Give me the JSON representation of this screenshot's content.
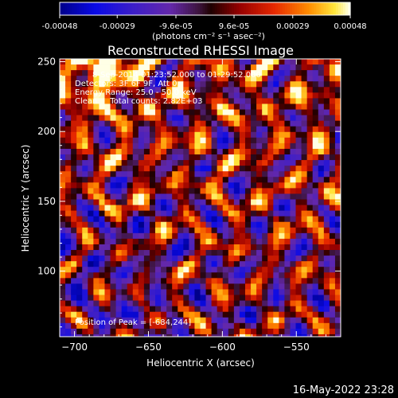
{
  "chart_data": {
    "type": "heatmap",
    "title": "Reconstructed RHESSI Image",
    "xlabel": "Heliocentric X (arcsec)",
    "ylabel": "Heliocentric Y (arcsec)",
    "xlim": [
      -710,
      -520
    ],
    "ylim": [
      53,
      252
    ],
    "x_ticks": [
      -700,
      -650,
      -600,
      -550
    ],
    "y_ticks": [
      100,
      150,
      200,
      250
    ],
    "colorbar": {
      "ticks": [
        -0.00048,
        -0.00029,
        -9.6e-05,
        9.6e-05,
        0.00029,
        0.00048
      ],
      "tick_labels": [
        "-0.00048",
        "-0.00029",
        "-9.6e-05",
        "9.6e-05",
        "0.00029",
        "0.00048"
      ],
      "unit_label": "(photons cm⁻² s⁻¹ asec⁻²)",
      "colormap": "RHESSI blue-purple-red-yellow-white"
    },
    "annotations": {
      "line1": "8-Sep-2014 01:23:52.000 to 01:29:52.000",
      "line2": "Detectors: 3F 6F 9F, Att 0",
      "line3": "Energy Range: 25.0 - 50.0 keV",
      "line4": "Clean     Total counts: 2.82E+03",
      "peak": "Position of Peak = [-684,244]"
    },
    "peak_position": [
      -684,
      244
    ],
    "grid": false
  },
  "footer": {
    "timestamp": "16-May-2022 23:28"
  },
  "colors": {
    "background": "#000000",
    "foreground": "#ffffff"
  }
}
